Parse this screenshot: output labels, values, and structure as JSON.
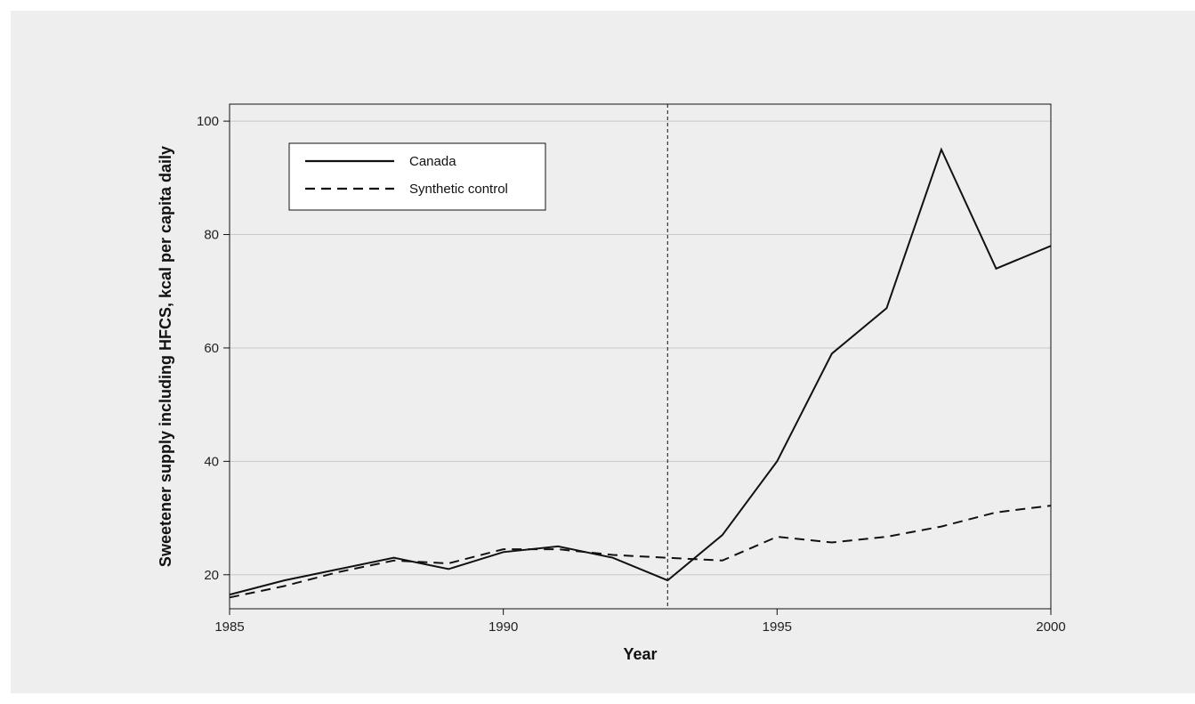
{
  "chart_data": {
    "type": "line",
    "title": "",
    "xlabel": "Year",
    "ylabel": "Sweetener supply including HFCS, kcal per capita daily",
    "xlim": [
      1985,
      2000
    ],
    "ylim": [
      14,
      103
    ],
    "x_ticks": [
      1985,
      1990,
      1995,
      2000
    ],
    "y_ticks": [
      20,
      40,
      60,
      80,
      100
    ],
    "grid": "horizontal",
    "legend_position": "top-left",
    "reference_line_x": 1993,
    "x": [
      1985,
      1986,
      1987,
      1988,
      1989,
      1990,
      1991,
      1992,
      1993,
      1994,
      1995,
      1996,
      1997,
      1998,
      1999,
      2000
    ],
    "series": [
      {
        "name": "Canada",
        "style": "solid",
        "values": [
          16.5,
          19,
          21,
          23,
          21,
          24,
          25,
          23,
          19,
          27,
          40,
          59,
          67,
          95,
          74,
          78
        ]
      },
      {
        "name": "Synthetic control",
        "style": "dashed",
        "values": [
          16,
          18,
          20.5,
          22.5,
          22,
          24.5,
          24.5,
          23.5,
          23,
          22.5,
          26.7,
          25.7,
          26.7,
          28.5,
          31,
          32.2
        ]
      }
    ]
  }
}
